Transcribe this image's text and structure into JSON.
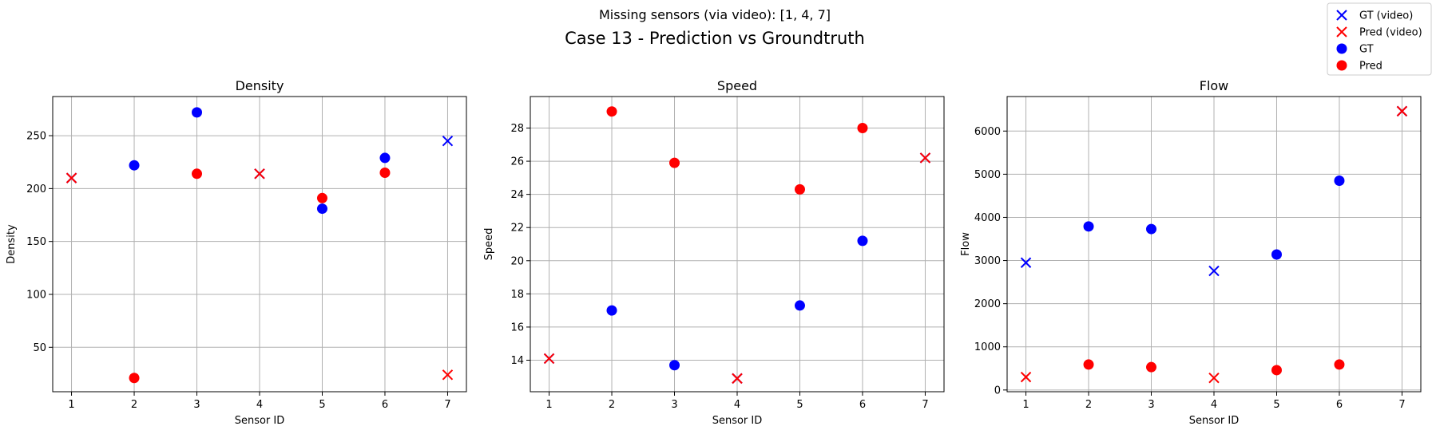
{
  "figure": {
    "subtitle": "Missing sensors (via video): [1, 4, 7]",
    "title": "Case 13 - Prediction vs Groundtruth"
  },
  "legend": {
    "placement": "top-right",
    "items": [
      {
        "label": "GT (video)",
        "marker": "x",
        "color": "#0000ff"
      },
      {
        "label": "Pred (video)",
        "marker": "x",
        "color": "#ff0000"
      },
      {
        "label": "GT",
        "marker": "o",
        "color": "#0000ff"
      },
      {
        "label": "Pred",
        "marker": "o",
        "color": "#ff0000"
      }
    ]
  },
  "colors": {
    "gt": "#0000ff",
    "pred": "#ff0000",
    "grid": "#b0b0b0"
  },
  "chart_data": [
    {
      "type": "scatter",
      "title": "Density",
      "xlabel": "Sensor ID",
      "ylabel": "Density",
      "xlim": [
        0.7,
        7.3
      ],
      "ylim": [
        8,
        287
      ],
      "xticks": [
        1,
        2,
        3,
        4,
        5,
        6,
        7
      ],
      "yticks": [
        50,
        100,
        150,
        200,
        250
      ],
      "grid": true,
      "missing_sensors": [
        1,
        4,
        7
      ],
      "x": [
        1,
        2,
        3,
        4,
        5,
        6,
        7
      ],
      "gt": [
        210,
        222,
        272,
        214,
        181,
        229,
        245
      ],
      "pred": [
        210,
        21,
        214,
        214,
        191,
        215,
        24
      ]
    },
    {
      "type": "scatter",
      "title": "Speed",
      "xlabel": "Sensor ID",
      "ylabel": "Speed",
      "xlim": [
        0.7,
        7.3
      ],
      "ylim": [
        12.1,
        29.9
      ],
      "xticks": [
        1,
        2,
        3,
        4,
        5,
        6,
        7
      ],
      "yticks": [
        14,
        16,
        18,
        20,
        22,
        24,
        26,
        28
      ],
      "grid": true,
      "missing_sensors": [
        1,
        4,
        7
      ],
      "x": [
        1,
        2,
        3,
        4,
        5,
        6,
        7
      ],
      "gt": [
        14.1,
        17.0,
        13.7,
        12.9,
        17.3,
        21.2,
        26.2
      ],
      "pred": [
        14.1,
        29.0,
        25.9,
        12.9,
        24.3,
        28.0,
        26.2
      ]
    },
    {
      "type": "scatter",
      "title": "Flow",
      "xlabel": "Sensor ID",
      "ylabel": "Flow",
      "xlim": [
        0.7,
        7.3
      ],
      "ylim": [
        -40,
        6800
      ],
      "xticks": [
        1,
        2,
        3,
        4,
        5,
        6,
        7
      ],
      "yticks": [
        0,
        1000,
        2000,
        3000,
        4000,
        5000,
        6000
      ],
      "grid": true,
      "missing_sensors": [
        1,
        4,
        7
      ],
      "x": [
        1,
        2,
        3,
        4,
        5,
        6,
        7
      ],
      "gt": [
        2950,
        3790,
        3730,
        2760,
        3140,
        4850,
        6460
      ],
      "pred": [
        300,
        590,
        530,
        280,
        460,
        590,
        6460
      ]
    }
  ]
}
